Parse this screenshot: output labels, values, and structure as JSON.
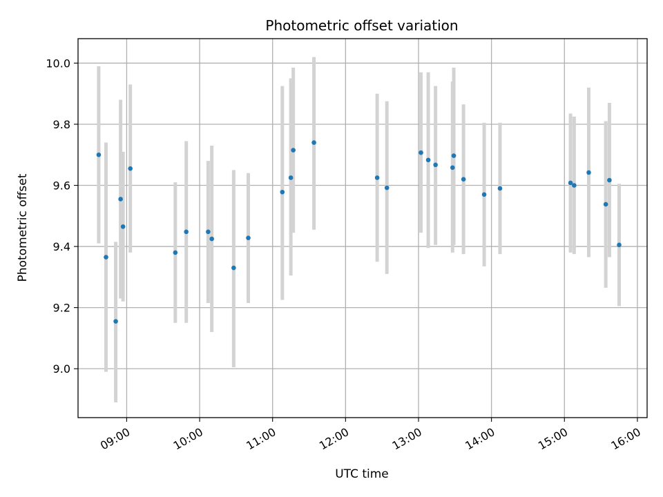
{
  "chart_data": {
    "type": "scatter",
    "title": "Photometric offset variation",
    "xlabel": "UTC time",
    "ylabel": "Photometric offset",
    "x_axis_type": "time",
    "xlim": [
      "08:20",
      "16:08"
    ],
    "ylim": [
      8.84,
      10.08
    ],
    "x_ticks": [
      "09:00",
      "10:00",
      "11:00",
      "12:00",
      "13:00",
      "14:00",
      "15:00",
      "16:00"
    ],
    "y_ticks": [
      "9.0",
      "9.2",
      "9.4",
      "9.6",
      "9.8",
      "10.0"
    ],
    "grid": true,
    "legend": "none",
    "colors": {
      "point": "#1f77b4",
      "errorbar": "#d3d3d3"
    },
    "points": [
      {
        "x": "08:37",
        "y": 9.7,
        "ylow": 9.41,
        "yhigh": 9.99
      },
      {
        "x": "08:43",
        "y": 9.365,
        "ylow": 8.99,
        "yhigh": 9.74
      },
      {
        "x": "08:51",
        "y": 9.155,
        "ylow": 8.89,
        "yhigh": 9.415
      },
      {
        "x": "08:55",
        "y": 9.555,
        "ylow": 9.23,
        "yhigh": 9.88
      },
      {
        "x": "08:57",
        "y": 9.465,
        "ylow": 9.22,
        "yhigh": 9.71
      },
      {
        "x": "09:03",
        "y": 9.655,
        "ylow": 9.38,
        "yhigh": 9.93
      },
      {
        "x": "09:40",
        "y": 9.38,
        "ylow": 9.15,
        "yhigh": 9.61
      },
      {
        "x": "09:49",
        "y": 9.448,
        "ylow": 9.15,
        "yhigh": 9.745
      },
      {
        "x": "10:07",
        "y": 9.448,
        "ylow": 9.215,
        "yhigh": 9.68
      },
      {
        "x": "10:10",
        "y": 9.425,
        "ylow": 9.12,
        "yhigh": 9.73
      },
      {
        "x": "10:28",
        "y": 9.33,
        "ylow": 9.005,
        "yhigh": 9.65
      },
      {
        "x": "10:40",
        "y": 9.428,
        "ylow": 9.215,
        "yhigh": 9.64
      },
      {
        "x": "11:08",
        "y": 9.578,
        "ylow": 9.225,
        "yhigh": 9.925
      },
      {
        "x": "11:15",
        "y": 9.625,
        "ylow": 9.305,
        "yhigh": 9.95
      },
      {
        "x": "11:17",
        "y": 9.715,
        "ylow": 9.445,
        "yhigh": 9.985
      },
      {
        "x": "11:34",
        "y": 9.74,
        "ylow": 9.455,
        "yhigh": 10.02
      },
      {
        "x": "12:26",
        "y": 9.625,
        "ylow": 9.35,
        "yhigh": 9.9
      },
      {
        "x": "12:34",
        "y": 9.592,
        "ylow": 9.31,
        "yhigh": 9.875
      },
      {
        "x": "13:02",
        "y": 9.707,
        "ylow": 9.445,
        "yhigh": 9.97
      },
      {
        "x": "13:08",
        "y": 9.683,
        "ylow": 9.395,
        "yhigh": 9.97
      },
      {
        "x": "13:14",
        "y": 9.667,
        "ylow": 9.405,
        "yhigh": 9.925
      },
      {
        "x": "13:28",
        "y": 9.658,
        "ylow": 9.38,
        "yhigh": 9.94
      },
      {
        "x": "13:29",
        "y": 9.697,
        "ylow": 9.405,
        "yhigh": 9.985
      },
      {
        "x": "13:37",
        "y": 9.62,
        "ylow": 9.375,
        "yhigh": 9.865
      },
      {
        "x": "13:54",
        "y": 9.57,
        "ylow": 9.335,
        "yhigh": 9.805
      },
      {
        "x": "14:07",
        "y": 9.59,
        "ylow": 9.375,
        "yhigh": 9.805
      },
      {
        "x": "15:05",
        "y": 9.608,
        "ylow": 9.38,
        "yhigh": 9.835
      },
      {
        "x": "15:08",
        "y": 9.6,
        "ylow": 9.375,
        "yhigh": 9.825
      },
      {
        "x": "15:20",
        "y": 9.642,
        "ylow": 9.365,
        "yhigh": 9.92
      },
      {
        "x": "15:34",
        "y": 9.538,
        "ylow": 9.265,
        "yhigh": 9.81
      },
      {
        "x": "15:37",
        "y": 9.617,
        "ylow": 9.365,
        "yhigh": 9.87
      },
      {
        "x": "15:45",
        "y": 9.405,
        "ylow": 9.205,
        "yhigh": 9.605
      }
    ]
  }
}
